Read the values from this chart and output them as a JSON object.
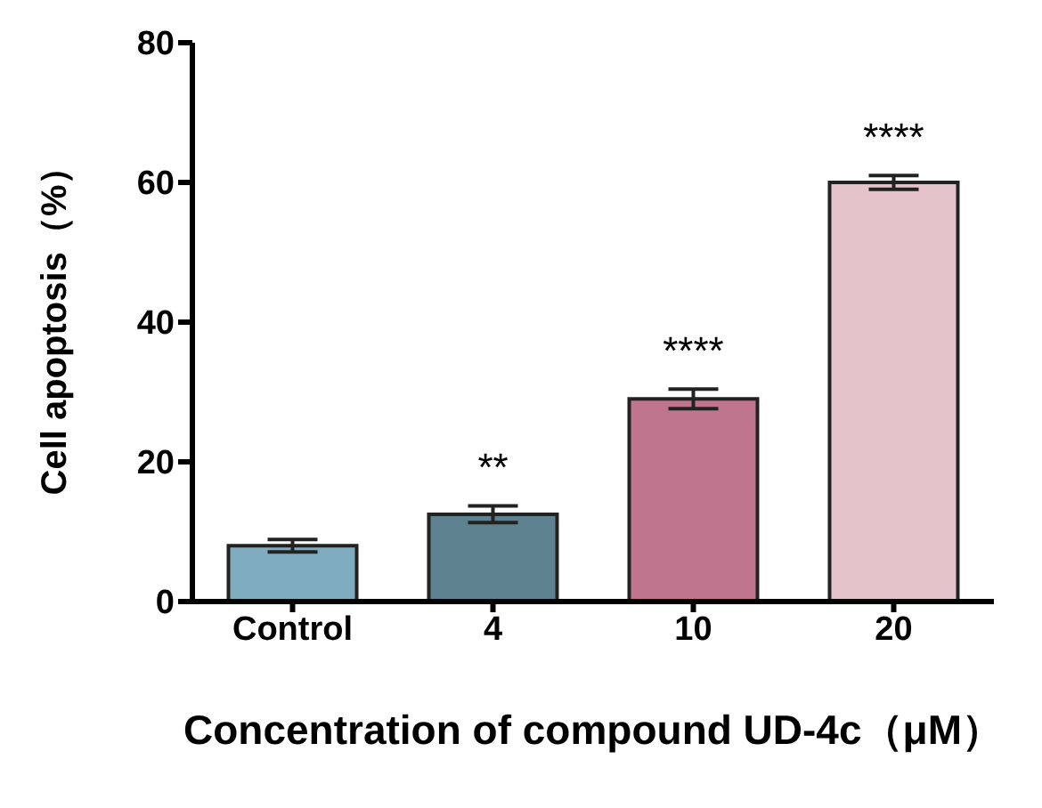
{
  "chart_data": {
    "type": "bar",
    "xlabel": "Concentration of compound UD-4c（μM）",
    "ylabel": "Cell apoptosis（%）",
    "categories": [
      "Control",
      "4",
      "10",
      "20"
    ],
    "values": [
      8,
      12.5,
      29,
      60
    ],
    "errors": [
      0.9,
      1.2,
      1.4,
      1.0
    ],
    "colors": [
      "#7fadbf",
      "#5f8291",
      "#c0758e",
      "#e4c3ca"
    ],
    "ylim": [
      0,
      80
    ],
    "yticks": [
      0,
      20,
      40,
      60,
      80
    ],
    "grid": false,
    "legend": false,
    "annotations": [
      "**",
      "****",
      "****"
    ]
  }
}
